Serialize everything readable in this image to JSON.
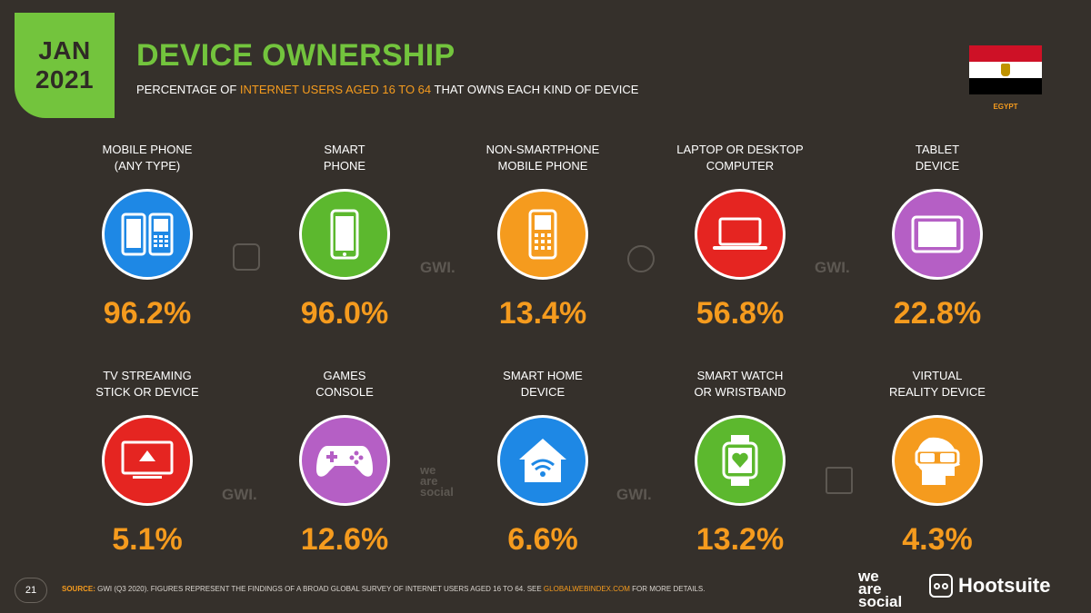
{
  "header": {
    "month": "JAN",
    "year": "2021",
    "title": "DEVICE OWNERSHIP",
    "subtitle_pre": "PERCENTAGE OF ",
    "subtitle_highlight": "INTERNET USERS AGED 16 TO 64",
    "subtitle_post": " THAT OWNS EACH KIND OF DEVICE",
    "country": "EGYPT",
    "flag_colors": [
      "#ce1126",
      "#ffffff",
      "#000000"
    ],
    "accent_color": "#73c43d",
    "value_color": "#f59b1e"
  },
  "devices": [
    {
      "label": "MOBILE PHONE\n(ANY TYPE)",
      "value": "96.2%",
      "icon": "mobile-phones-icon",
      "color": "#1e88e5"
    },
    {
      "label": "SMART\nPHONE",
      "value": "96.0%",
      "icon": "smartphone-icon",
      "color": "#5cb82e"
    },
    {
      "label": "NON-SMARTPHONE\nMOBILE PHONE",
      "value": "13.4%",
      "icon": "feature-phone-icon",
      "color": "#f59b1e"
    },
    {
      "label": "LAPTOP OR DESKTOP\nCOMPUTER",
      "value": "56.8%",
      "icon": "laptop-icon",
      "color": "#e52521"
    },
    {
      "label": "TABLET\nDEVICE",
      "value": "22.8%",
      "icon": "tablet-icon",
      "color": "#b55fc5"
    },
    {
      "label": "TV STREAMING\nSTICK OR DEVICE",
      "value": "5.1%",
      "icon": "tv-streaming-icon",
      "color": "#e52521"
    },
    {
      "label": "GAMES\nCONSOLE",
      "value": "12.6%",
      "icon": "gamepad-icon",
      "color": "#b55fc5"
    },
    {
      "label": "SMART HOME\nDEVICE",
      "value": "6.6%",
      "icon": "smart-home-icon",
      "color": "#1e88e5"
    },
    {
      "label": "SMART WATCH\nOR WRISTBAND",
      "value": "13.2%",
      "icon": "smartwatch-icon",
      "color": "#5cb82e"
    },
    {
      "label": "VIRTUAL\nREALITY DEVICE",
      "value": "4.3%",
      "icon": "vr-headset-icon",
      "color": "#f59b1e"
    }
  ],
  "watermarks": {
    "gwi": "GWI.",
    "we_are_social": "we\nare\nsocial"
  },
  "footer": {
    "page_number": "21",
    "source_label": "SOURCE:",
    "source_text": " GWI (Q3 2020). FIGURES REPRESENT THE FINDINGS OF A BROAD GLOBAL SURVEY OF INTERNET USERS AGED 16 TO 64. SEE ",
    "source_link": "GLOBALWEBINDEX.COM",
    "source_end": " FOR MORE DETAILS.",
    "brand_was_1": "we",
    "brand_was_2": "are",
    "brand_was_3": "social",
    "brand_hootsuite": "Hootsuite"
  }
}
